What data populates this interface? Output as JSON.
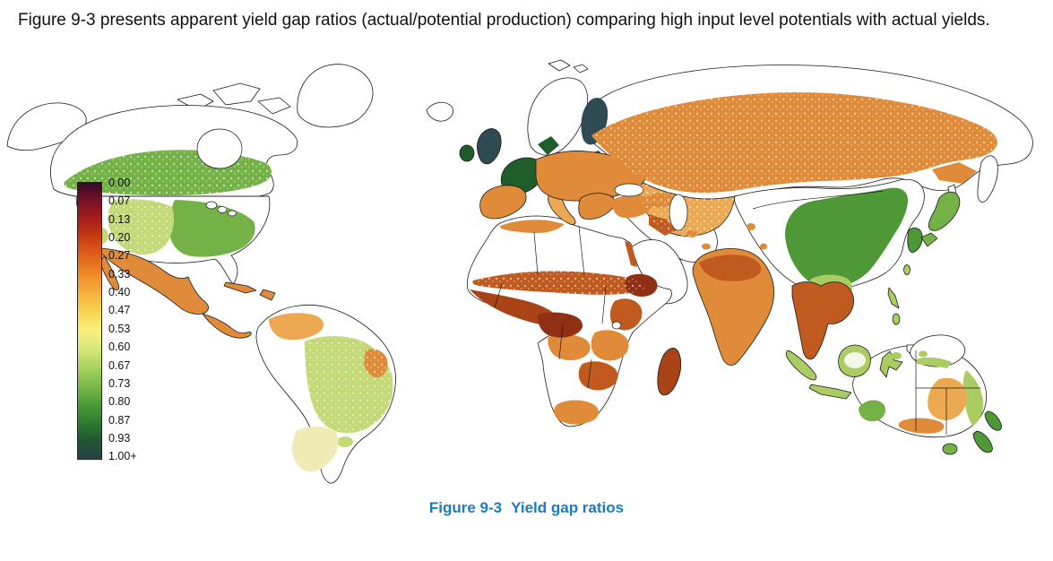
{
  "intro": {
    "text": "Figure 9-3 presents apparent yield gap ratios (actual/potential production) comparing high input level potentials with actual yields."
  },
  "figure": {
    "caption_label": "Figure 9-3",
    "caption_title": "Yield gap ratios",
    "caption_color": "#1C7BC0"
  },
  "legend": {
    "stops": [
      {
        "label": "0.00",
        "color": "#330C26"
      },
      {
        "label": "0.07",
        "color": "#7A1226"
      },
      {
        "label": "0.13",
        "color": "#A81D1B"
      },
      {
        "label": "0.20",
        "color": "#C93D11"
      },
      {
        "label": "0.27",
        "color": "#E0641C"
      },
      {
        "label": "0.33",
        "color": "#EF8B28"
      },
      {
        "label": "0.40",
        "color": "#F5B13C"
      },
      {
        "label": "0.47",
        "color": "#F8D44F"
      },
      {
        "label": "0.53",
        "color": "#F9EF7E"
      },
      {
        "label": "0.60",
        "color": "#D9E97B"
      },
      {
        "label": "0.67",
        "color": "#A9D35F"
      },
      {
        "label": "0.73",
        "color": "#7CBA4A"
      },
      {
        "label": "0.80",
        "color": "#4F9C3A"
      },
      {
        "label": "0.87",
        "color": "#2F7D2F"
      },
      {
        "label": "0.93",
        "color": "#1F5632"
      },
      {
        "label": "1.00+",
        "color": "#27404A"
      }
    ]
  },
  "map": {
    "palette": {
      "land": "#FFFFFF",
      "dark_slate": "#2E4A52",
      "dark_green": "#1F5D2B",
      "green": "#4E9838",
      "mid_green": "#74B247",
      "light_green": "#A9CD62",
      "yellow_green": "#C3D876",
      "pale_yellow": "#EFEBB4",
      "light_orange": "#ECA952",
      "orange": "#E08B3A",
      "dark_orange": "#C05A1E",
      "red_brown": "#A84418",
      "dark_red": "#8F3014"
    }
  }
}
